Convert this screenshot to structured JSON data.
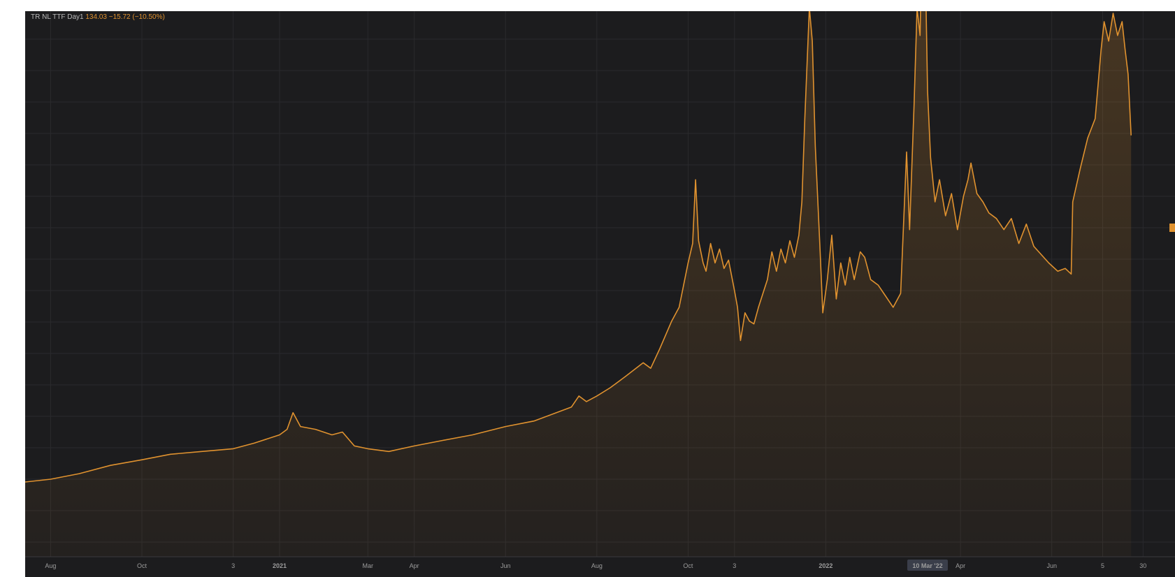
{
  "legend": {
    "instrument": "TR NL TTF Day1",
    "last": "134.03",
    "change": "−15.72 (−10.50%)"
  },
  "colors": {
    "background": "#1c1c1e",
    "line": "#e0922f",
    "grid": "#2a2a2d",
    "axis_text": "#9c9c9c",
    "crosshair_label_bg": "#3a3e4a"
  },
  "chart_data": {
    "type": "area",
    "title": "",
    "xlabel": "",
    "ylabel": "",
    "grid": true,
    "x_tick_labels": [
      {
        "text": "Aug",
        "date": "2020-08-01"
      },
      {
        "text": "Oct",
        "date": "2020-10-01"
      },
      {
        "text": "3",
        "date": "2020-12-01"
      },
      {
        "text": "2021",
        "date": "2021-01-01",
        "bold": true
      },
      {
        "text": "Mar",
        "date": "2021-03-01"
      },
      {
        "text": "Apr",
        "date": "2021-04-01"
      },
      {
        "text": "Jun",
        "date": "2021-06-01"
      },
      {
        "text": "Aug",
        "date": "2021-08-01"
      },
      {
        "text": "Oct",
        "date": "2021-10-01"
      },
      {
        "text": "3",
        "date": "2021-11-01"
      },
      {
        "text": "2022",
        "date": "2022-01-01",
        "bold": true
      },
      {
        "text": "Apr",
        "date": "2022-04-01"
      },
      {
        "text": "Jun",
        "date": "2022-06-01"
      },
      {
        "text": "5",
        "date": "2022-07-05"
      },
      {
        "text": "30",
        "date": "2022-08-01"
      }
    ],
    "crosshair": {
      "label": "10 Mar '22",
      "date": "2022-03-10"
    },
    "ylim": [
      0,
      250
    ],
    "series": [
      {
        "color": "#e0922f",
        "points": [
          [
            "2020-07-15",
            9
          ],
          [
            "2020-08-01",
            10
          ],
          [
            "2020-08-20",
            12
          ],
          [
            "2020-09-10",
            15
          ],
          [
            "2020-10-01",
            17
          ],
          [
            "2020-10-20",
            19
          ],
          [
            "2020-11-10",
            20
          ],
          [
            "2020-12-01",
            21
          ],
          [
            "2020-12-15",
            23
          ],
          [
            "2021-01-01",
            26
          ],
          [
            "2021-01-06",
            28
          ],
          [
            "2021-01-10",
            34
          ],
          [
            "2021-01-15",
            29
          ],
          [
            "2021-01-25",
            28
          ],
          [
            "2021-02-05",
            26
          ],
          [
            "2021-02-12",
            27
          ],
          [
            "2021-02-20",
            22
          ],
          [
            "2021-03-01",
            21
          ],
          [
            "2021-03-15",
            20
          ],
          [
            "2021-04-01",
            22
          ],
          [
            "2021-04-20",
            24
          ],
          [
            "2021-05-10",
            26
          ],
          [
            "2021-06-01",
            29
          ],
          [
            "2021-06-20",
            31
          ],
          [
            "2021-07-05",
            34
          ],
          [
            "2021-07-15",
            36
          ],
          [
            "2021-07-20",
            40
          ],
          [
            "2021-07-25",
            38
          ],
          [
            "2021-08-01",
            40
          ],
          [
            "2021-08-10",
            43
          ],
          [
            "2021-08-20",
            47
          ],
          [
            "2021-09-01",
            52
          ],
          [
            "2021-09-06",
            50
          ],
          [
            "2021-09-12",
            57
          ],
          [
            "2021-09-20",
            67
          ],
          [
            "2021-09-25",
            72
          ],
          [
            "2021-10-01",
            88
          ],
          [
            "2021-10-04",
            95
          ],
          [
            "2021-10-06",
            118
          ],
          [
            "2021-10-08",
            96
          ],
          [
            "2021-10-11",
            88
          ],
          [
            "2021-10-13",
            85
          ],
          [
            "2021-10-16",
            95
          ],
          [
            "2021-10-19",
            88
          ],
          [
            "2021-10-22",
            93
          ],
          [
            "2021-10-25",
            86
          ],
          [
            "2021-10-28",
            89
          ],
          [
            "2021-11-01",
            78
          ],
          [
            "2021-11-03",
            72
          ],
          [
            "2021-11-05",
            60
          ],
          [
            "2021-11-08",
            70
          ],
          [
            "2021-11-11",
            67
          ],
          [
            "2021-11-14",
            66
          ],
          [
            "2021-11-17",
            72
          ],
          [
            "2021-11-20",
            77
          ],
          [
            "2021-11-23",
            82
          ],
          [
            "2021-11-26",
            92
          ],
          [
            "2021-11-29",
            85
          ],
          [
            "2021-12-02",
            93
          ],
          [
            "2021-12-05",
            88
          ],
          [
            "2021-12-08",
            96
          ],
          [
            "2021-12-11",
            90
          ],
          [
            "2021-12-14",
            98
          ],
          [
            "2021-12-16",
            110
          ],
          [
            "2021-12-18",
            140
          ],
          [
            "2021-12-21",
            180
          ],
          [
            "2021-12-23",
            168
          ],
          [
            "2021-12-25",
            130
          ],
          [
            "2021-12-28",
            95
          ],
          [
            "2021-12-30",
            70
          ],
          [
            "2022-01-02",
            82
          ],
          [
            "2022-01-05",
            98
          ],
          [
            "2022-01-08",
            75
          ],
          [
            "2022-01-11",
            88
          ],
          [
            "2022-01-14",
            80
          ],
          [
            "2022-01-17",
            90
          ],
          [
            "2022-01-20",
            82
          ],
          [
            "2022-01-24",
            92
          ],
          [
            "2022-01-27",
            90
          ],
          [
            "2022-01-31",
            82
          ],
          [
            "2022-02-05",
            80
          ],
          [
            "2022-02-10",
            76
          ],
          [
            "2022-02-15",
            72
          ],
          [
            "2022-02-20",
            77
          ],
          [
            "2022-02-24",
            128
          ],
          [
            "2022-02-26",
            100
          ],
          [
            "2022-03-01",
            145
          ],
          [
            "2022-03-03",
            180
          ],
          [
            "2022-03-05",
            170
          ],
          [
            "2022-03-07",
            227
          ],
          [
            "2022-03-09",
            180
          ],
          [
            "2022-03-10",
            150
          ],
          [
            "2022-03-12",
            126
          ],
          [
            "2022-03-15",
            110
          ],
          [
            "2022-03-18",
            118
          ],
          [
            "2022-03-22",
            105
          ],
          [
            "2022-03-26",
            113
          ],
          [
            "2022-03-30",
            100
          ],
          [
            "2022-04-03",
            112
          ],
          [
            "2022-04-06",
            118
          ],
          [
            "2022-04-08",
            124
          ],
          [
            "2022-04-12",
            113
          ],
          [
            "2022-04-16",
            110
          ],
          [
            "2022-04-20",
            106
          ],
          [
            "2022-04-25",
            104
          ],
          [
            "2022-04-30",
            100
          ],
          [
            "2022-05-05",
            104
          ],
          [
            "2022-05-10",
            95
          ],
          [
            "2022-05-15",
            102
          ],
          [
            "2022-05-20",
            94
          ],
          [
            "2022-05-25",
            91
          ],
          [
            "2022-05-30",
            88
          ],
          [
            "2022-06-05",
            85
          ],
          [
            "2022-06-10",
            86
          ],
          [
            "2022-06-14",
            84
          ],
          [
            "2022-06-15",
            110
          ],
          [
            "2022-06-20",
            122
          ],
          [
            "2022-06-25",
            133
          ],
          [
            "2022-06-30",
            140
          ],
          [
            "2022-07-04",
            165
          ],
          [
            "2022-07-06",
            175
          ],
          [
            "2022-07-09",
            168
          ],
          [
            "2022-07-12",
            178
          ],
          [
            "2022-07-15",
            170
          ],
          [
            "2022-07-18",
            175
          ],
          [
            "2022-07-20",
            165
          ],
          [
            "2022-07-22",
            156
          ],
          [
            "2022-07-24",
            134
          ]
        ]
      }
    ]
  }
}
